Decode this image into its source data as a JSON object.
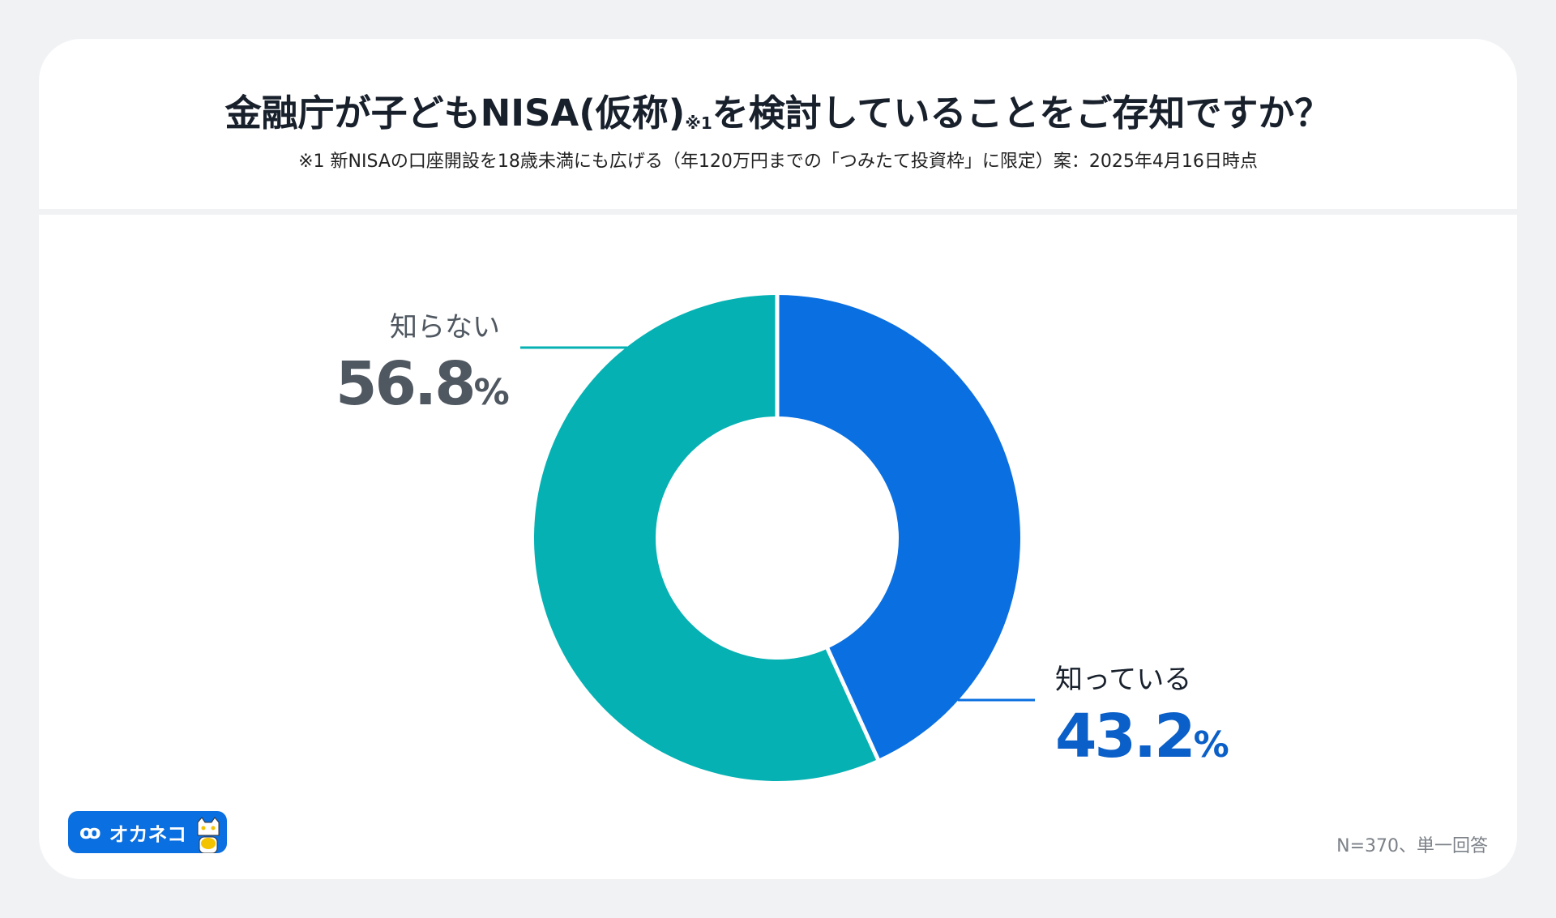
{
  "header": {
    "title": "金融庁が子どもNISA(仮称)",
    "title_note_mark": "※1",
    "title_rest": "を検討していることをご存知ですか？",
    "subtitle": "※1 新NISAの口座開設を18歳未満にも広げる（年120万円までの「つみたて投資枠」に限定）案：2025年4月16日時点"
  },
  "chart_data": {
    "type": "pie",
    "donut": true,
    "title": "金融庁が子どもNISA(仮称)を検討していることをご存知ですか？",
    "categories": [
      "知っている",
      "知らない"
    ],
    "values": [
      43.2,
      56.8
    ],
    "unit": "%",
    "colors": [
      "#0a6fe0",
      "#05b1b3"
    ],
    "labels": [
      {
        "name": "知っている",
        "value": "43.2",
        "unit": "%"
      },
      {
        "name": "知らない",
        "value": "56.8",
        "unit": "%"
      }
    ]
  },
  "footer": {
    "note": "N=370、単一回答",
    "logo_text": "オカネコ"
  },
  "colors": {
    "known": "#0a6fe0",
    "unknown": "#05b1b3",
    "known_text": "#0a5fc8",
    "unknown_text": "#4f5760"
  }
}
